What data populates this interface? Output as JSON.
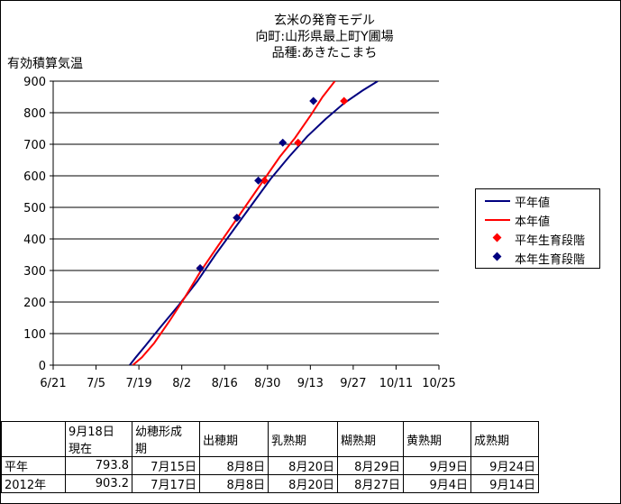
{
  "title_lines": [
    "玄米の発育モデル",
    "向町:山形県最上町Y圃場",
    "品種:あきたこまち"
  ],
  "chart_data": {
    "type": "line",
    "ylabel": "有効積算気温",
    "ylim": [
      0,
      900
    ],
    "yticks": [
      0,
      100,
      200,
      300,
      400,
      500,
      600,
      700,
      800,
      900
    ],
    "xlim": [
      "6/21",
      "10/25"
    ],
    "xticks": [
      "6/21",
      "7/5",
      "7/19",
      "8/2",
      "8/16",
      "8/30",
      "9/13",
      "9/27",
      "10/11",
      "10/25"
    ],
    "grid": "horizontal",
    "legend_position": "right",
    "series": [
      {
        "name": "平年値",
        "type": "line",
        "color": "#000080",
        "points": [
          [
            "7/16",
            0
          ],
          [
            "7/18",
            25
          ],
          [
            "7/21",
            60
          ],
          [
            "7/26",
            120
          ],
          [
            "8/1",
            190
          ],
          [
            "8/7",
            265
          ],
          [
            "8/13",
            350
          ],
          [
            "8/19",
            430
          ],
          [
            "8/25",
            510
          ],
          [
            "8/31",
            590
          ],
          [
            "9/6",
            660
          ],
          [
            "9/12",
            725
          ],
          [
            "9/18",
            780
          ],
          [
            "9/24",
            830
          ],
          [
            "9/30",
            870
          ],
          [
            "10/5",
            900
          ]
        ]
      },
      {
        "name": "本年値",
        "type": "line",
        "color": "#ff0000",
        "points": [
          [
            "7/17",
            0
          ],
          [
            "7/20",
            25
          ],
          [
            "7/24",
            70
          ],
          [
            "7/29",
            140
          ],
          [
            "8/3",
            215
          ],
          [
            "8/8",
            295
          ],
          [
            "8/14",
            380
          ],
          [
            "8/19",
            450
          ],
          [
            "8/24",
            520
          ],
          [
            "8/29",
            590
          ],
          [
            "9/3",
            660
          ],
          [
            "9/8",
            720
          ],
          [
            "9/13",
            790
          ],
          [
            "9/17",
            850
          ],
          [
            "9/21",
            900
          ]
        ]
      },
      {
        "name": "平年生育段階",
        "type": "scatter",
        "color": "#ff0000",
        "points": [
          [
            "8/8",
            307
          ],
          [
            "8/20",
            467
          ],
          [
            "8/29",
            585
          ],
          [
            "9/9",
            705
          ],
          [
            "9/24",
            837
          ]
        ]
      },
      {
        "name": "本年生育段階",
        "type": "scatter",
        "color": "#000080",
        "points": [
          [
            "8/8",
            307
          ],
          [
            "8/20",
            467
          ],
          [
            "8/27",
            585
          ],
          [
            "9/4",
            705
          ],
          [
            "9/14",
            837
          ]
        ]
      }
    ]
  },
  "table": {
    "headers": [
      "",
      "9月18日\n現在",
      "幼穂形成\n期",
      "出穂期",
      "乳熟期",
      "糊熟期",
      "黄熟期",
      "成熟期"
    ],
    "rows": [
      [
        "平年",
        "793.8",
        "7月15日",
        "8月8日",
        "8月20日",
        "8月29日",
        "9月9日",
        "9月24日"
      ],
      [
        "2012年",
        "903.2",
        "7月17日",
        "8月8日",
        "8月20日",
        "8月27日",
        "9月4日",
        "9月14日"
      ]
    ]
  }
}
